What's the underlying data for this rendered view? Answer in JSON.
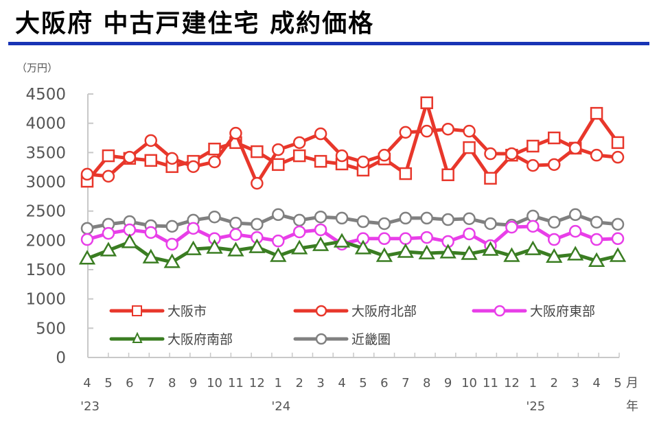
{
  "title": "大阪府 中古戸建住宅 成約価格",
  "unit_label": "（万円）",
  "chart_data": {
    "type": "line",
    "title": "大阪府 中古戸建住宅 成約価格",
    "ylabel": "（万円）",
    "xlabel": "月 / 年",
    "ylim": [
      0,
      4500
    ],
    "yticks": [
      0,
      500,
      1000,
      1500,
      2000,
      2500,
      3000,
      3500,
      4000,
      4500
    ],
    "grid": false,
    "legend_position": "inside-bottom-left",
    "x_month_labels": [
      "4",
      "5",
      "6",
      "7",
      "8",
      "9",
      "10",
      "11",
      "12",
      "1",
      "2",
      "3",
      "4",
      "5",
      "6",
      "7",
      "8",
      "9",
      "10",
      "11",
      "12",
      "1",
      "2",
      "3",
      "4",
      "5"
    ],
    "x_year_labels": [
      {
        "index": 0,
        "label": "'23"
      },
      {
        "index": 9,
        "label": "'24"
      },
      {
        "index": 21,
        "label": "'25"
      }
    ],
    "x_unit_month": "月",
    "x_unit_year": "年",
    "categories": [
      "2023-04",
      "2023-05",
      "2023-06",
      "2023-07",
      "2023-08",
      "2023-09",
      "2023-10",
      "2023-11",
      "2023-12",
      "2024-01",
      "2024-02",
      "2024-03",
      "2024-04",
      "2024-05",
      "2024-06",
      "2024-07",
      "2024-08",
      "2024-09",
      "2024-10",
      "2024-11",
      "2024-12",
      "2025-01",
      "2025-02",
      "2025-03",
      "2025-04",
      "2025-05"
    ],
    "series": [
      {
        "name": "大阪市",
        "color": "#e8372b",
        "marker": "square",
        "values": [
          3010,
          3445,
          3400,
          3365,
          3260,
          3350,
          3560,
          3670,
          3515,
          3295,
          3445,
          3350,
          3305,
          3200,
          3390,
          3140,
          4350,
          3120,
          3585,
          3060,
          3455,
          3610,
          3750,
          3575,
          4170,
          3670
        ]
      },
      {
        "name": "大阪府北部",
        "color": "#e8372b",
        "marker": "circle",
        "values": [
          3130,
          3095,
          3420,
          3705,
          3400,
          3260,
          3340,
          3830,
          2975,
          3550,
          3670,
          3820,
          3445,
          3340,
          3455,
          3845,
          3865,
          3900,
          3865,
          3480,
          3480,
          3280,
          3295,
          3575,
          3455,
          3420
        ]
      },
      {
        "name": "大阪府東部",
        "color": "#e83ee8",
        "marker": "circle",
        "values": [
          2015,
          2120,
          2180,
          2135,
          1935,
          2205,
          2030,
          2100,
          2050,
          1990,
          2145,
          2180,
          1935,
          2030,
          2030,
          2030,
          2050,
          1980,
          2110,
          1910,
          2225,
          2240,
          2015,
          2155,
          2015,
          2030
        ]
      },
      {
        "name": "大阪府南部",
        "color": "#3a7d22",
        "marker": "triangle",
        "values": [
          1690,
          1830,
          1970,
          1710,
          1630,
          1850,
          1875,
          1830,
          1885,
          1735,
          1865,
          1920,
          1980,
          1865,
          1735,
          1805,
          1780,
          1795,
          1770,
          1840,
          1735,
          1850,
          1720,
          1760,
          1650,
          1735
        ]
      },
      {
        "name": "近畿圏",
        "color": "#808080",
        "marker": "circle",
        "values": [
          2205,
          2275,
          2320,
          2250,
          2240,
          2345,
          2400,
          2295,
          2275,
          2440,
          2345,
          2400,
          2380,
          2320,
          2285,
          2380,
          2380,
          2355,
          2370,
          2285,
          2260,
          2415,
          2310,
          2440,
          2310,
          2275
        ]
      }
    ]
  },
  "legend": [
    {
      "label": "大阪市"
    },
    {
      "label": "大阪府北部"
    },
    {
      "label": "大阪府東部"
    },
    {
      "label": "大阪府南部"
    },
    {
      "label": "近畿圏"
    }
  ]
}
